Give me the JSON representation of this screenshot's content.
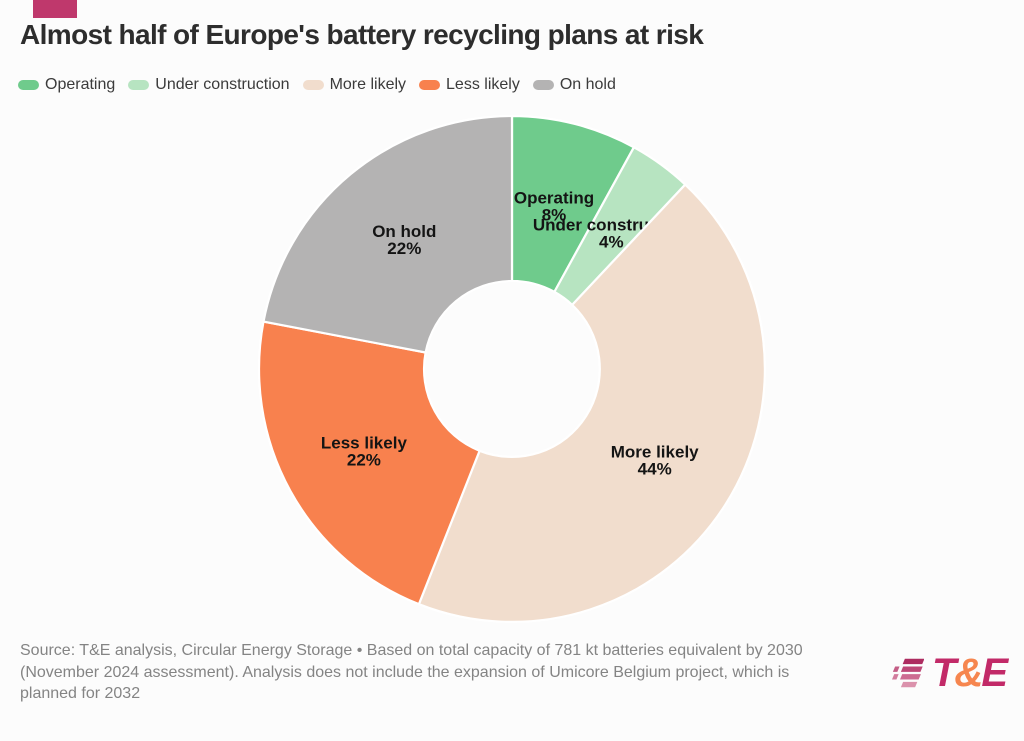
{
  "page": {
    "background": "#fcfcfc",
    "accent_color": "#bf386c"
  },
  "header": {
    "title": "Almost half of Europe's battery recycling plans at risk"
  },
  "chart_data": {
    "type": "pie",
    "donut": true,
    "title": "Almost half of Europe's battery recycling plans at risk",
    "start_angle_deg": 0,
    "direction": "clockwise",
    "legend_position": "top",
    "slice_label_format": "{label} {value}%",
    "segments": [
      {
        "label": "Operating",
        "value": 8,
        "color": "#6fcb8c"
      },
      {
        "label": "Under construction",
        "value": 4,
        "color": "#b7e4c1"
      },
      {
        "label": "More likely",
        "value": 44,
        "color": "#f1ddcd"
      },
      {
        "label": "Less likely",
        "value": 22,
        "color": "#f8814e"
      },
      {
        "label": "On hold",
        "value": 22,
        "color": "#b4b3b3"
      }
    ]
  },
  "footer": {
    "lines": [
      "Source: T&E analysis, Circular Energy Storage • Based on total capacity of 781 kt batteries equivalent by 2030",
      "(November 2024 assessment). Analysis does not include the expansion of Umicore Belgium project, which is",
      "planned for 2032"
    ]
  },
  "logo": {
    "icon": "speed-stripes-icon",
    "t": "T",
    "amp": "&",
    "e": "E",
    "text_color": "#c22a68",
    "amp_color": "#f6864f",
    "stripe_colors": [
      "#ad2c60",
      "#bd4877",
      "#cd6c92",
      "#db92ac"
    ]
  }
}
